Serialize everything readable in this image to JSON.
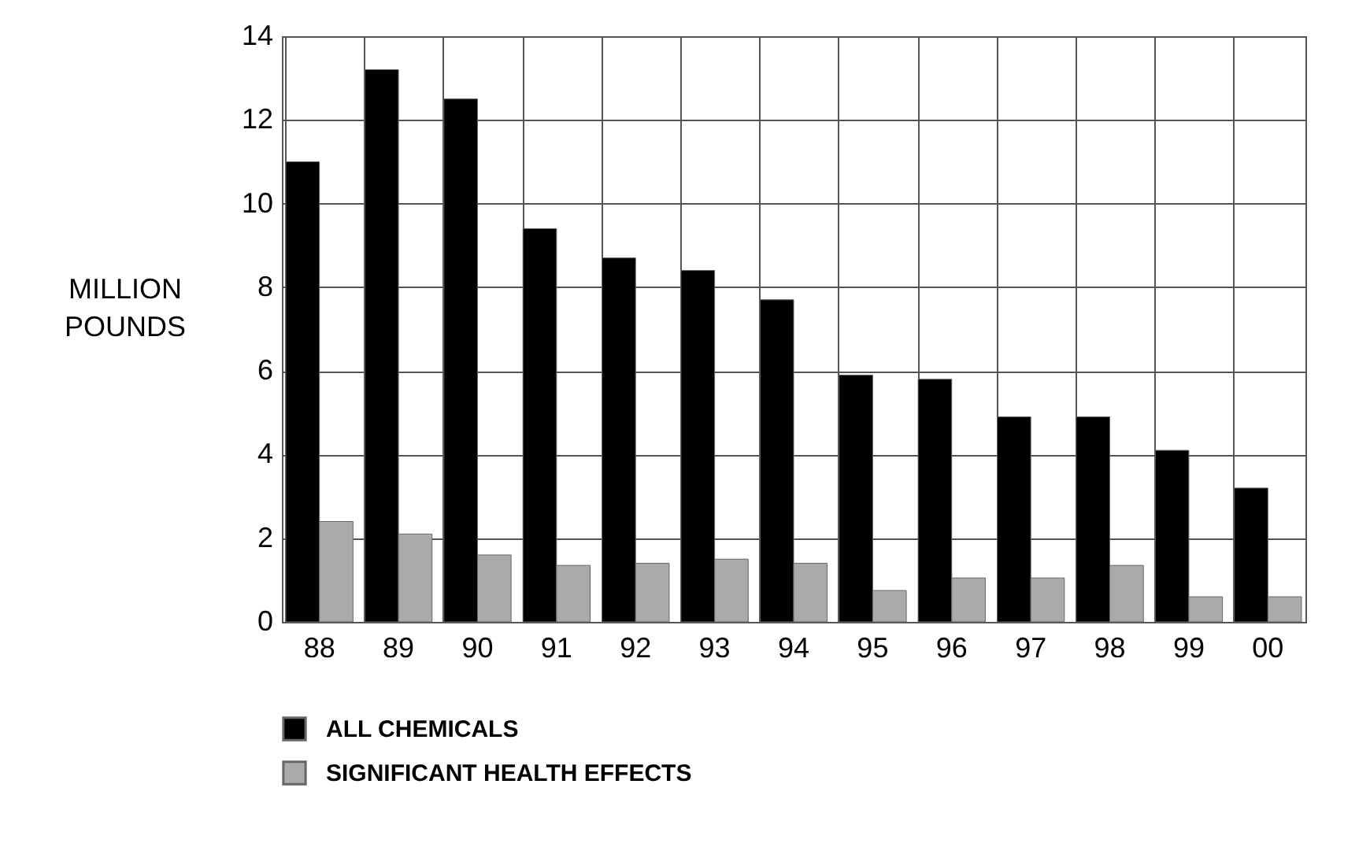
{
  "chart_data": {
    "type": "bar",
    "ylabel": "MILLION POUNDS",
    "categories": [
      "88",
      "89",
      "90",
      "91",
      "92",
      "93",
      "94",
      "95",
      "96",
      "97",
      "98",
      "99",
      "00"
    ],
    "series": [
      {
        "name": "ALL CHEMICALS",
        "color": "#000000",
        "values": [
          11.0,
          13.2,
          12.5,
          9.4,
          8.7,
          8.4,
          7.7,
          5.9,
          5.8,
          4.9,
          4.9,
          4.1,
          3.2
        ]
      },
      {
        "name": "SIGNIFICANT HEALTH EFFECTS",
        "color": "#aaaaaa",
        "values": [
          2.4,
          2.1,
          1.6,
          1.35,
          1.4,
          1.5,
          1.4,
          0.75,
          1.05,
          1.05,
          1.35,
          0.6,
          0.6
        ]
      }
    ],
    "ylim": [
      0,
      14
    ],
    "yticks": [
      0,
      2,
      4,
      6,
      8,
      10,
      12,
      14
    ],
    "grid": true,
    "legend": "bottom"
  }
}
